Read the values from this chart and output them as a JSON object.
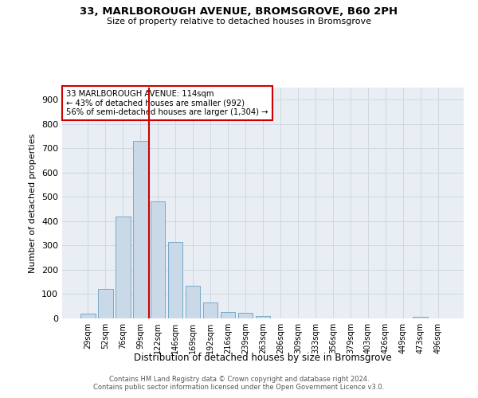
{
  "title_line1": "33, MARLBOROUGH AVENUE, BROMSGROVE, B60 2PH",
  "title_line2": "Size of property relative to detached houses in Bromsgrove",
  "xlabel": "Distribution of detached houses by size in Bromsgrove",
  "ylabel": "Number of detached properties",
  "bar_labels": [
    "29sqm",
    "52sqm",
    "76sqm",
    "99sqm",
    "122sqm",
    "146sqm",
    "169sqm",
    "192sqm",
    "216sqm",
    "239sqm",
    "263sqm",
    "286sqm",
    "309sqm",
    "333sqm",
    "356sqm",
    "379sqm",
    "403sqm",
    "426sqm",
    "449sqm",
    "473sqm",
    "496sqm"
  ],
  "bar_values": [
    20,
    122,
    418,
    732,
    480,
    315,
    133,
    65,
    25,
    22,
    10,
    0,
    0,
    0,
    0,
    0,
    0,
    0,
    0,
    8,
    0
  ],
  "bar_color": "#c9d9e8",
  "bar_edge_color": "#7aaac8",
  "vline_color": "#cc0000",
  "vline_x_index": 3.5,
  "annotation_text": "33 MARLBOROUGH AVENUE: 114sqm\n← 43% of detached houses are smaller (992)\n56% of semi-detached houses are larger (1,304) →",
  "annotation_box_color": "#ffffff",
  "annotation_box_edge": "#cc0000",
  "ylim": [
    0,
    950
  ],
  "yticks": [
    0,
    100,
    200,
    300,
    400,
    500,
    600,
    700,
    800,
    900
  ],
  "grid_color": "#d0d8e0",
  "background_color": "#e8eef4",
  "footer_line1": "Contains HM Land Registry data © Crown copyright and database right 2024.",
  "footer_line2": "Contains public sector information licensed under the Open Government Licence v3.0."
}
